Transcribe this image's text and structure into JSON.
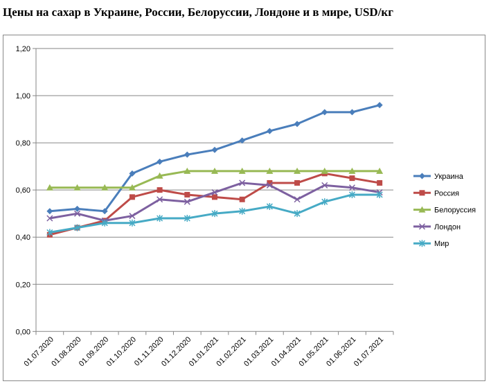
{
  "chart_data": {
    "type": "line",
    "title": "Цены на сахар в Украине, России, Белоруссии, Лондоне и в мире, USD/кг",
    "xlabel": "",
    "ylabel": "",
    "categories": [
      "01.07.2020",
      "01.08.2020",
      "01.09.2020",
      "01.10.2020",
      "01.11.2020",
      "01.12.2020",
      "01.01.2021",
      "01.02.2021",
      "01.03.2021",
      "01.04.2021",
      "01.05.2021",
      "01.06.2021",
      "01.07.2021"
    ],
    "ylim": [
      0,
      1.2
    ],
    "yticks": [
      "0,00",
      "0,20",
      "0,40",
      "0,60",
      "0,80",
      "1,00",
      "1,20"
    ],
    "grid": true,
    "legend": "right",
    "series": [
      {
        "name": "Украина",
        "color": "#4a7ebb",
        "marker": "diamond",
        "values": [
          0.51,
          0.52,
          0.51,
          0.67,
          0.72,
          0.75,
          0.77,
          0.81,
          0.85,
          0.88,
          0.93,
          0.93,
          0.96
        ]
      },
      {
        "name": "Россия",
        "color": "#be4b48",
        "marker": "square",
        "values": [
          0.41,
          0.44,
          0.47,
          0.57,
          0.6,
          0.58,
          0.57,
          0.56,
          0.63,
          0.63,
          0.67,
          0.65,
          0.63
        ]
      },
      {
        "name": "Белоруссия",
        "color": "#98b954",
        "marker": "triangle",
        "values": [
          0.61,
          0.61,
          0.61,
          0.61,
          0.66,
          0.68,
          0.68,
          0.68,
          0.68,
          0.68,
          0.68,
          0.68,
          0.68
        ]
      },
      {
        "name": "Лондон",
        "color": "#7d60a0",
        "marker": "x",
        "values": [
          0.48,
          0.5,
          0.47,
          0.49,
          0.56,
          0.55,
          0.59,
          0.63,
          0.62,
          0.56,
          0.62,
          0.61,
          0.59
        ]
      },
      {
        "name": "Мир",
        "color": "#46aac5",
        "marker": "star",
        "values": [
          0.42,
          0.44,
          0.46,
          0.46,
          0.48,
          0.48,
          0.5,
          0.51,
          0.53,
          0.5,
          0.55,
          0.58,
          0.58
        ]
      }
    ]
  }
}
